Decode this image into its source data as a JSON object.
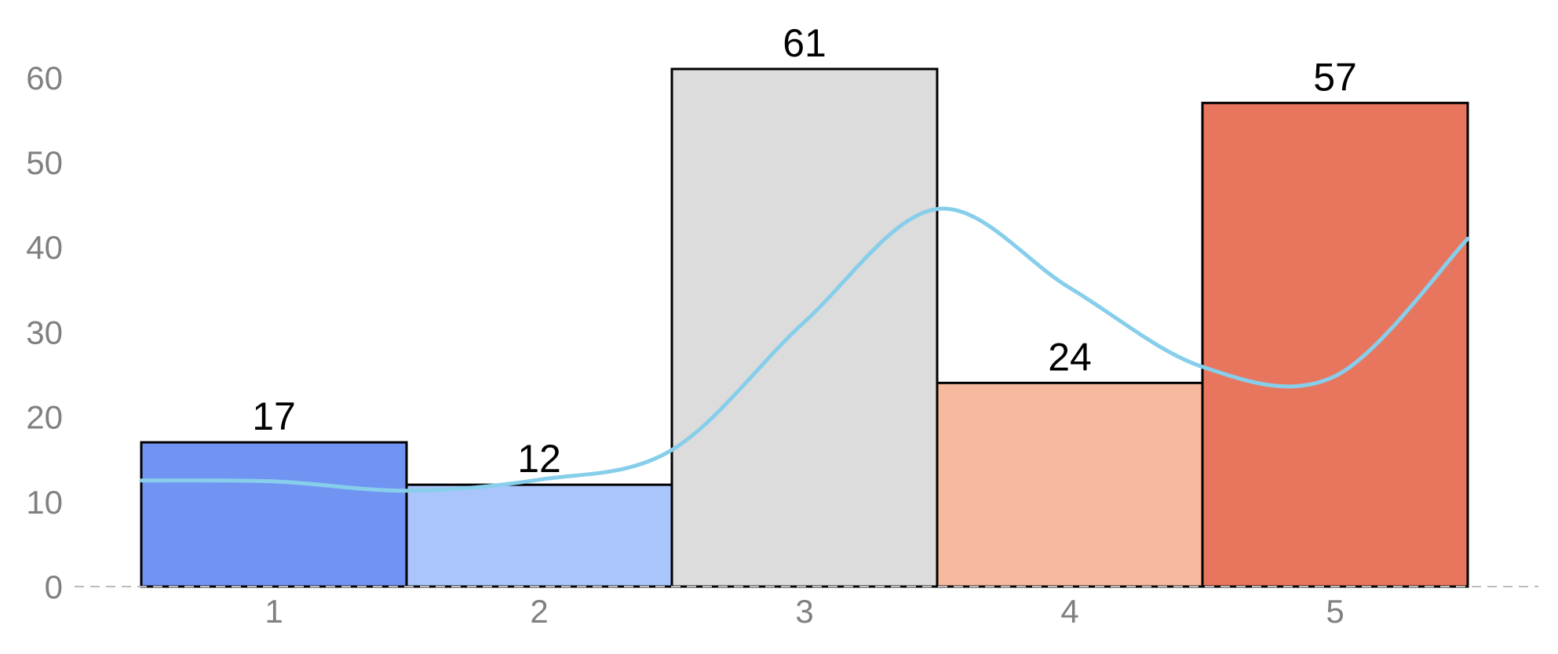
{
  "chart_data": {
    "type": "bar",
    "categories": [
      "1",
      "2",
      "3",
      "4",
      "5"
    ],
    "values": [
      17,
      12,
      61,
      24,
      57
    ],
    "colors": [
      "#7194f3",
      "#aac5fc",
      "#dcdcdc",
      "#f7b99d",
      "#e8755e"
    ],
    "overlay_line": {
      "type": "line",
      "color": "#87ceeb",
      "x": [
        0.5,
        1.0,
        1.5,
        2.0,
        2.5,
        3.0,
        3.5,
        4.0,
        4.5,
        5.0,
        5.5
      ],
      "y": [
        12.5,
        12.4,
        11.3,
        12.6,
        16.1,
        31.2,
        44.5,
        35.2,
        25.9,
        24.8,
        41.0
      ]
    },
    "title": "",
    "xlabel": "",
    "ylabel": "",
    "ylim": [
      0,
      65
    ],
    "yticks": [
      0,
      10,
      20,
      30,
      40,
      50,
      60
    ],
    "grid": false,
    "legend": "none",
    "baseline_style": "dashed",
    "baseline_color": "#bbbbbb",
    "bar_edge_color": "#000000"
  }
}
